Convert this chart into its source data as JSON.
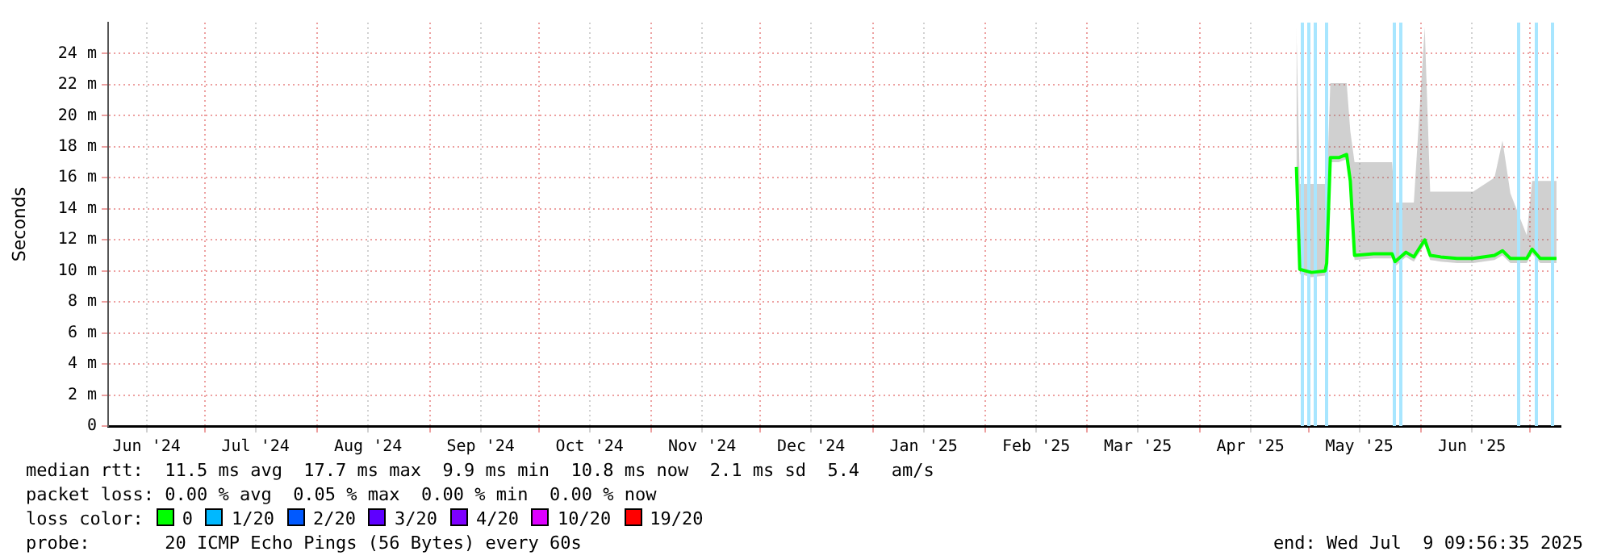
{
  "chart_data": {
    "type": "line",
    "ylabel": "Seconds",
    "xlim": [
      "2024-06-04T09:56",
      "2025-07-09T09:56"
    ],
    "xticks": [
      {
        "value": "2024-06-15",
        "label": "Jun '24"
      },
      {
        "value": "2024-07-01",
        "label": null
      },
      {
        "value": "2024-07-15",
        "label": "Jul '24"
      },
      {
        "value": "2024-08-01",
        "label": null
      },
      {
        "value": "2024-08-15",
        "label": "Aug '24"
      },
      {
        "value": "2024-09-01",
        "label": null
      },
      {
        "value": "2024-09-15",
        "label": "Sep '24"
      },
      {
        "value": "2024-10-01",
        "label": null
      },
      {
        "value": "2024-10-15",
        "label": "Oct '24"
      },
      {
        "value": "2024-11-01",
        "label": null
      },
      {
        "value": "2024-11-15",
        "label": "Nov '24"
      },
      {
        "value": "2024-12-01",
        "label": null
      },
      {
        "value": "2024-12-15",
        "label": "Dec '24"
      },
      {
        "value": "2025-01-01",
        "label": null
      },
      {
        "value": "2025-01-15",
        "label": "Jan '25"
      },
      {
        "value": "2025-02-01",
        "label": null
      },
      {
        "value": "2025-02-15",
        "label": "Feb '25"
      },
      {
        "value": "2025-03-01",
        "label": null
      },
      {
        "value": "2025-03-15",
        "label": "Mar '25"
      },
      {
        "value": "2025-04-01",
        "label": null
      },
      {
        "value": "2025-04-15",
        "label": "Apr '25"
      },
      {
        "value": "2025-05-01",
        "label": null
      },
      {
        "value": "2025-05-15",
        "label": "May '25"
      },
      {
        "value": "2025-06-01",
        "label": null
      },
      {
        "value": "2025-06-15",
        "label": "Jun '25"
      },
      {
        "value": "2025-07-01",
        "label": null
      }
    ],
    "ylim": [
      0,
      26
    ],
    "yticks": [
      0,
      {
        "value": 2,
        "label": "2 m"
      },
      {
        "value": 4,
        "label": "4 m"
      },
      {
        "value": 6,
        "label": "6 m"
      },
      {
        "value": 8,
        "label": "8 m"
      },
      {
        "value": 10,
        "label": "10 m"
      },
      {
        "value": 12,
        "label": "12 m"
      },
      {
        "value": 14,
        "label": "14 m"
      },
      {
        "value": 16,
        "label": "16 m"
      },
      {
        "value": 18,
        "label": "18 m"
      },
      {
        "value": 20,
        "label": "20 m"
      },
      {
        "value": 22,
        "label": "22 m"
      },
      {
        "value": 24,
        "label": "24 m"
      }
    ],
    "grid": true,
    "legend": "bottom",
    "legend_title": "loss color:",
    "marker": "none",
    "line_style": "solid",
    "series": [
      {
        "name": "0",
        "color": "#00ff00",
        "x": [
          "2025-04-27T16:00",
          "2025-04-28T14:00",
          "2025-05-01T19:00",
          "2025-05-05T14:00",
          "2025-05-06T00:00",
          "2025-05-07T00:00",
          "2025-05-09T08:00",
          "2025-05-11T12:00",
          "2025-05-12T12:00",
          "2025-05-13T16:00",
          "2025-05-18T22:00",
          "2025-05-24T00:00",
          "2025-05-24T20:00",
          "2025-05-27T20:00",
          "2025-05-30T00:00",
          "2025-06-02T00:00",
          "2025-06-03T12:00",
          "2025-06-06T10:00",
          "2025-06-10T22:00",
          "2025-06-15T08:00",
          "2025-06-21T05:00",
          "2025-06-23T10:00",
          "2025-06-25T14:00",
          "2025-06-30T02:00",
          "2025-07-01T14:00",
          "2025-07-03T19:00",
          "2025-07-08T07:00"
        ],
        "values": [
          16.7,
          10.1,
          9.9,
          10,
          10.5,
          17.3,
          17.3,
          17.5,
          15.8,
          11,
          11.1,
          11.1,
          10.6,
          11.2,
          10.9,
          12,
          11,
          10.9,
          10.8,
          10.8,
          11,
          11.3,
          10.8,
          10.8,
          11.4,
          10.8,
          10.8
        ],
        "lower": [
          16.4,
          9.8,
          9.6,
          9.7,
          10.2,
          17,
          17,
          17.2,
          15.5,
          10.7,
          10.8,
          10.8,
          10.3,
          10.9,
          10.6,
          11.7,
          10.7,
          10.6,
          10.5,
          10.5,
          10.7,
          11,
          10.5,
          10.5,
          11.1,
          10.5,
          10.5
        ],
        "upper": [
          25.7,
          15.6,
          15.6,
          15.6,
          15,
          22.1,
          22.1,
          22.1,
          19,
          17,
          17,
          17,
          14.4,
          14.4,
          14.4,
          25.7,
          15.1,
          15.1,
          15.1,
          15.1,
          16,
          18.4,
          15,
          12.3,
          15.8,
          15.8,
          15.8
        ]
      },
      {
        "name": "1/20",
        "color": "#00b8ff"
      },
      {
        "name": "2/20",
        "color": "#0059ff"
      },
      {
        "name": "3/20",
        "color": "#5e00ff"
      },
      {
        "name": "4/20",
        "color": "#7e00ff"
      },
      {
        "name": "10/20",
        "color": "#dd00ff"
      },
      {
        "name": "19/20",
        "color": "#ff0000"
      }
    ],
    "ref_lines": [
      {
        "axis": "x",
        "value": "2025-04-29T08:00",
        "color": "#a8e6ff"
      },
      {
        "axis": "x",
        "value": "2025-05-01T02:00",
        "color": "#a8e6ff"
      },
      {
        "axis": "x",
        "value": "2025-05-03T00:00",
        "color": "#a8e6ff"
      },
      {
        "axis": "x",
        "value": "2025-05-05T22:00",
        "color": "#a8e6ff"
      },
      {
        "axis": "x",
        "value": "2025-05-24T12:00",
        "color": "#a8e6ff"
      },
      {
        "axis": "x",
        "value": "2025-05-26T07:00",
        "color": "#a8e6ff"
      },
      {
        "axis": "x",
        "value": "2025-06-27T22:00",
        "color": "#a8e6ff"
      },
      {
        "axis": "x",
        "value": "2025-07-02T17:00",
        "color": "#a8e6ff"
      },
      {
        "axis": "x",
        "value": "2025-07-07T00:00",
        "color": "#a8e6ff"
      }
    ],
    "annotations": [
      "median rtt:  11.5 ms avg  17.7 ms max  9.9 ms min  10.8 ms now  2.1 ms sd  5.4   am/s",
      "packet loss: 0.00 % avg  0.05 % max  0.00 % min  0.00 % now",
      "probe:       20 ICMP Echo Pings (56 Bytes) every 60s",
      "end: Wed Jul  9 09:56:35 2025"
    ]
  }
}
